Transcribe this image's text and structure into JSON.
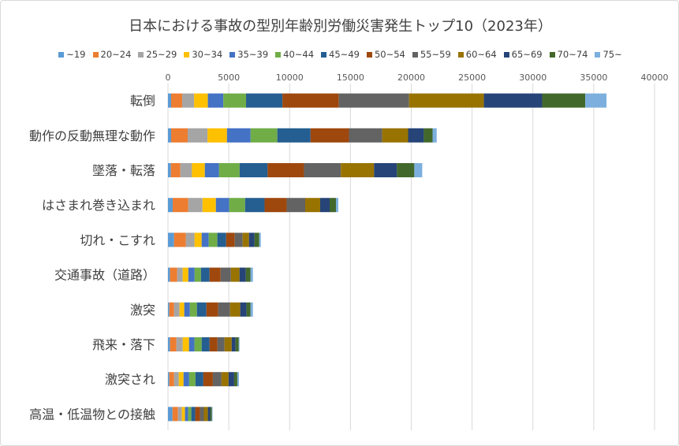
{
  "chart_data": {
    "type": "bar",
    "orientation": "horizontal",
    "stacked": true,
    "title": "日本における事故の型別年齢別労働災害発生トップ10（2023年）",
    "xlim": [
      0,
      40000
    ],
    "xticks": [
      "0",
      "5000",
      "10000",
      "15000",
      "20000",
      "25000",
      "30000",
      "35000",
      "40000"
    ],
    "grid": true,
    "legend_position": "top",
    "categories": [
      "転倒",
      "動作の反動無理な動作",
      "墜落・転落",
      "はさまれ巻き込まれ",
      "切れ・こすれ",
      "交通事故（道路）",
      "激突",
      "飛来・落下",
      "激突され",
      "高温・低温物との接触"
    ],
    "series": [
      {
        "name": "~19",
        "color": "#5B9BD5",
        "values": [
          260,
          260,
          240,
          390,
          500,
          170,
          110,
          170,
          110,
          370
        ]
      },
      {
        "name": "20~24",
        "color": "#ED7D31",
        "values": [
          910,
          1360,
          780,
          1280,
          970,
          590,
          390,
          520,
          390,
          450
        ]
      },
      {
        "name": "25~29",
        "color": "#A5A5A5",
        "values": [
          980,
          1630,
          950,
          1170,
          710,
          450,
          450,
          520,
          390,
          320
        ]
      },
      {
        "name": "30~34",
        "color": "#FFC000",
        "values": [
          1130,
          1600,
          1060,
          1100,
          590,
          460,
          390,
          520,
          390,
          260
        ]
      },
      {
        "name": "35~39",
        "color": "#4472C4",
        "values": [
          1270,
          1940,
          1170,
          1100,
          580,
          520,
          460,
          450,
          460,
          260
        ]
      },
      {
        "name": "40~44",
        "color": "#70AD47",
        "values": [
          1870,
          2200,
          1690,
          1300,
          710,
          520,
          580,
          590,
          520,
          260
        ]
      },
      {
        "name": "45~49",
        "color": "#255E91",
        "values": [
          2990,
          2730,
          2300,
          1600,
          720,
          710,
          780,
          650,
          650,
          320
        ]
      },
      {
        "name": "50~54",
        "color": "#9E480E",
        "values": [
          4640,
          3160,
          2990,
          1820,
          710,
          910,
          970,
          650,
          780,
          390
        ]
      },
      {
        "name": "55~59",
        "color": "#636363",
        "values": [
          5770,
          2730,
          3030,
          1520,
          650,
          840,
          970,
          580,
          710,
          320
        ]
      },
      {
        "name": "60~64",
        "color": "#997300",
        "values": [
          6150,
          2130,
          2730,
          1230,
          520,
          710,
          840,
          590,
          580,
          330
        ]
      },
      {
        "name": "65~69",
        "color": "#264478",
        "values": [
          4790,
          1290,
          1880,
          780,
          450,
          520,
          520,
          320,
          460,
          190
        ]
      },
      {
        "name": "70~74",
        "color": "#43682B",
        "values": [
          3540,
          720,
          1430,
          520,
          390,
          390,
          330,
          260,
          260,
          130
        ]
      },
      {
        "name": "75~",
        "color": "#7CAFDD",
        "values": [
          1750,
          340,
          650,
          190,
          130,
          190,
          190,
          60,
          130,
          60
        ]
      }
    ]
  }
}
